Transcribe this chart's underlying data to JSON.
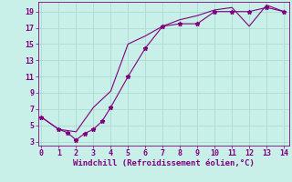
{
  "line1_x": [
    0,
    1,
    1.5,
    2,
    2.5,
    3,
    3.5,
    4,
    5,
    6,
    7,
    8,
    9,
    10,
    11,
    12,
    13,
    14
  ],
  "line1_y": [
    6,
    4.5,
    4.1,
    3.2,
    4.0,
    4.5,
    5.5,
    7.2,
    11.0,
    14.5,
    17.2,
    17.5,
    17.5,
    19.0,
    19.0,
    19.0,
    19.5,
    19.0
  ],
  "line2_x": [
    0,
    1,
    2,
    3,
    4,
    5,
    6,
    7,
    8,
    9,
    10,
    11,
    12,
    13,
    14
  ],
  "line2_y": [
    6.0,
    4.5,
    4.2,
    7.2,
    9.2,
    15.0,
    16.0,
    17.2,
    18.0,
    18.5,
    19.2,
    19.5,
    17.2,
    19.8,
    19.0
  ],
  "line_color": "#800080",
  "marker": "*",
  "marker_size": 3.5,
  "bg_color": "#c8efe8",
  "grid_color": "#a8ddd0",
  "xlabel": "Windchill (Refroidissement éolien,°C)",
  "xlabel_color": "#800080",
  "xlabel_fontsize": 6.5,
  "xtick_fontsize": 6,
  "ytick_fontsize": 6,
  "xlim": [
    -0.2,
    14.3
  ],
  "ylim": [
    2.5,
    20.2
  ],
  "xticks": [
    0,
    1,
    2,
    3,
    4,
    5,
    6,
    7,
    8,
    9,
    10,
    11,
    12,
    13,
    14
  ],
  "yticks": [
    3,
    5,
    7,
    9,
    11,
    13,
    15,
    17,
    19
  ]
}
